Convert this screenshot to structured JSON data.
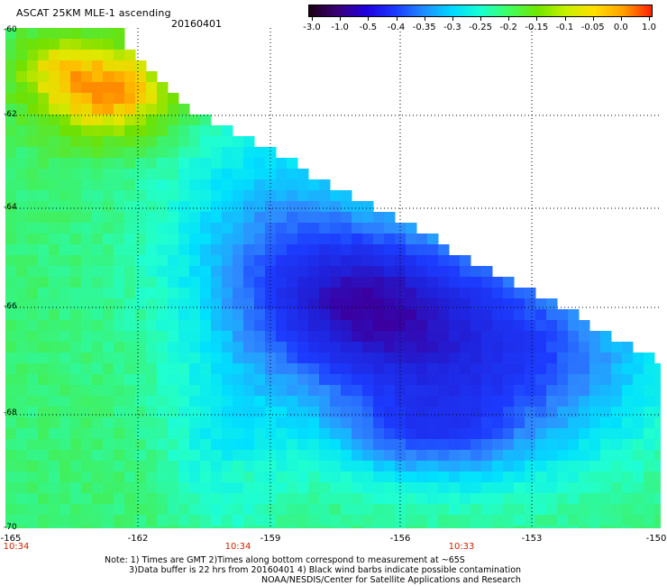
{
  "header": {
    "title": "ASCAT 25KM MLE-1 ascending",
    "date": "20160401"
  },
  "colorbar": {
    "labels": [
      "-3.0",
      "-1.0",
      "-0.5",
      "-0.4",
      "-0.35",
      "-0.3",
      "-0.25",
      "-0.2",
      "-0.15",
      "-0.1",
      "-0.05",
      "0.0",
      "1.0"
    ],
    "colors": [
      "#1a0010",
      "#3a0078",
      "#1e00e0",
      "#1b38ff",
      "#1f8bff",
      "#00d8ff",
      "#18ffd2",
      "#40ff60",
      "#70e600",
      "#c8f000",
      "#ffe000",
      "#ffa000",
      "#ff2000"
    ]
  },
  "map": {
    "lat_labels": [
      "-60",
      "-62",
      "-64",
      "-66",
      "-68",
      "-70"
    ],
    "lon_labels": [
      "-165",
      "-162",
      "-159",
      "-156",
      "-153",
      "-150"
    ],
    "time_labels": [
      "10:34",
      "10:34",
      "10:33"
    ],
    "time_color": "#cc2200",
    "grid": "dotted"
  },
  "notes": {
    "line1": "Note: 1) Times are GMT 2)Times along bottom correspond to measurement at ~65S",
    "line2": "3)Data buffer is 22 hrs from 20160401 4) Black wind barbs indicate possible contamination",
    "line3": "NOAA/NESDIS/Center for Satellite Applications and Research"
  }
}
